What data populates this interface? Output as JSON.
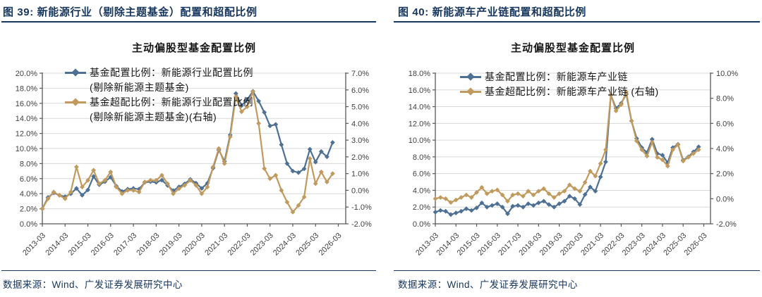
{
  "page": {
    "background": "#ffffff",
    "accent_navy": "#17365d",
    "grid_color": "#d9d9d9",
    "axis_color": "#595959"
  },
  "figures": [
    {
      "caption": "图 39: 新能源行业（剔除主题基金）配置和超配比例",
      "source": "数据来源：Wind、广发证券发展研究中心"
    },
    {
      "caption": "图 40: 新能源车产业链配置和超配比例",
      "source": "数据来源：Wind、广发证券发展研究中心"
    }
  ],
  "chart_data": [
    {
      "type": "line",
      "title": "主动偏股型基金配置比例",
      "grid": "horizontal",
      "legend_position": "top-left",
      "x_labels_quarterly": [
        "2013-03",
        "2013-06",
        "2013-09",
        "2013-12",
        "2014-03",
        "2014-06",
        "2014-09",
        "2014-12",
        "2015-03",
        "2015-06",
        "2015-09",
        "2015-12",
        "2016-03",
        "2016-06",
        "2016-09",
        "2016-12",
        "2017-03",
        "2017-06",
        "2017-09",
        "2017-12",
        "2018-03",
        "2018-06",
        "2018-09",
        "2018-12",
        "2019-03",
        "2019-06",
        "2019-09",
        "2019-12",
        "2020-03",
        "2020-06",
        "2020-09",
        "2020-12",
        "2021-03",
        "2021-06",
        "2021-09",
        "2021-12",
        "2022-03",
        "2022-06",
        "2022-09",
        "2022-12",
        "2023-03",
        "2023-06",
        "2023-09",
        "2023-12",
        "2024-03",
        "2024-06",
        "2024-09",
        "2024-12",
        "2025-03",
        "2025-06",
        "2025-09",
        "2025-12"
      ],
      "x_tick_labels": [
        "2013-03",
        "2014-03",
        "2015-03",
        "2016-03",
        "2017-03",
        "2018-03",
        "2019-03",
        "2020-03",
        "2021-03",
        "2022-03",
        "2023-03",
        "2024-03",
        "2025-03",
        "2026-03"
      ],
      "left_axis": {
        "lim": [
          0,
          20
        ],
        "ticks": [
          0,
          2,
          4,
          6,
          8,
          10,
          12,
          14,
          16,
          18,
          20
        ],
        "tick_labels": [
          "0.0%",
          "2.0%",
          "4.0%",
          "6.0%",
          "8.0%",
          "10.0%",
          "12.0%",
          "14.0%",
          "16.0%",
          "18.0%",
          "20.0%"
        ]
      },
      "right_axis": {
        "lim": [
          -2,
          7
        ],
        "ticks": [
          -2,
          -1,
          0,
          1,
          2,
          3,
          4,
          5,
          6,
          7
        ],
        "tick_labels": [
          "-2.0%",
          "-1.0%",
          "0.0%",
          "1.0%",
          "2.0%",
          "3.0%",
          "4.0%",
          "5.0%",
          "6.0%",
          "7.0%"
        ]
      },
      "series": [
        {
          "name": "基金配置比例：新能源行业配置比例(剔除新能源主题基金)",
          "legend_line1": "基金配置比例：新能源行业配置比例",
          "legend_line2": "(剔除新能源主题基金)",
          "axis": "left",
          "color": "#4d7094",
          "marker": "diamond",
          "values": [
            2.0,
            3.5,
            4.1,
            3.8,
            3.6,
            4.0,
            4.7,
            3.8,
            4.5,
            6.3,
            5.2,
            5.6,
            6.2,
            5.0,
            4.3,
            4.6,
            4.7,
            4.6,
            5.5,
            5.6,
            5.5,
            5.8,
            5.1,
            4.4,
            4.9,
            5.3,
            5.9,
            5.4,
            4.7,
            5.4,
            7.4,
            9.8,
            8.3,
            11.8,
            17.3,
            15.7,
            16.5,
            17.6,
            16.3,
            14.8,
            13.0,
            13.2,
            10.5,
            8.0,
            7.0,
            6.8,
            7.3,
            9.9,
            8.2,
            9.6,
            8.9,
            10.8
          ]
        },
        {
          "name": "基金超配比例：新能源行业配置比例(剔除新能源主题基金)(右轴)",
          "legend_line1": "基金超配比例：新能源行业配置比例",
          "legend_line2": "(剔除新能源主题基金)(右轴)",
          "axis": "right",
          "color": "#c19a5e",
          "marker": "diamond",
          "values": [
            -1.1,
            -0.5,
            -0.1,
            -0.3,
            -0.5,
            -0.1,
            1.4,
            0.2,
            0.6,
            1.2,
            0.4,
            0.6,
            1.1,
            0.2,
            -0.2,
            0.0,
            0.0,
            -0.1,
            0.5,
            0.6,
            0.6,
            0.9,
            0.4,
            -0.2,
            0.1,
            0.3,
            0.6,
            0.3,
            -0.2,
            0.2,
            1.4,
            2.5,
            1.6,
            3.2,
            5.6,
            4.7,
            5.0,
            5.9,
            4.0,
            1.3,
            0.7,
            0.9,
            0.0,
            -0.7,
            -1.3,
            -0.9,
            -0.4,
            1.9,
            0.4,
            1.1,
            0.5,
            1.0
          ]
        }
      ]
    },
    {
      "type": "line",
      "title": "主动偏股型基金配置比例",
      "grid": "horizontal",
      "legend_position": "top-left",
      "x_labels_quarterly": [
        "2013-03",
        "2013-06",
        "2013-09",
        "2013-12",
        "2014-03",
        "2014-06",
        "2014-09",
        "2014-12",
        "2015-03",
        "2015-06",
        "2015-09",
        "2015-12",
        "2016-03",
        "2016-06",
        "2016-09",
        "2016-12",
        "2017-03",
        "2017-06",
        "2017-09",
        "2017-12",
        "2018-03",
        "2018-06",
        "2018-09",
        "2018-12",
        "2019-03",
        "2019-06",
        "2019-09",
        "2019-12",
        "2020-03",
        "2020-06",
        "2020-09",
        "2020-12",
        "2021-03",
        "2021-06",
        "2021-09",
        "2021-12",
        "2022-03",
        "2022-06",
        "2022-09",
        "2022-12",
        "2023-03",
        "2023-06",
        "2023-09",
        "2023-12",
        "2024-03",
        "2024-06",
        "2024-09",
        "2024-12",
        "2025-03",
        "2025-06",
        "2025-09",
        "2025-12"
      ],
      "x_tick_labels": [
        "2013-03",
        "2014-03",
        "2015-03",
        "2016-03",
        "2017-03",
        "2018-03",
        "2019-03",
        "2020-03",
        "2021-03",
        "2022-03",
        "2023-03",
        "2024-03",
        "2025-03",
        "2026-03"
      ],
      "left_axis": {
        "lim": [
          0,
          18
        ],
        "ticks": [
          0,
          2,
          4,
          6,
          8,
          10,
          12,
          14,
          16,
          18
        ],
        "tick_labels": [
          "0.0%",
          "2.0%",
          "4.0%",
          "6.0%",
          "8.0%",
          "10.0%",
          "12.0%",
          "14.0%",
          "16.0%",
          "18.0%"
        ]
      },
      "right_axis": {
        "lim": [
          -2,
          10
        ],
        "ticks": [
          -2,
          0,
          2,
          4,
          6,
          8,
          10
        ],
        "tick_labels": [
          "-2.0%",
          "0.0%",
          "2.0%",
          "4.0%",
          "6.0%",
          "8.0%",
          "10.0%"
        ]
      },
      "series": [
        {
          "name": "基金配置比例：新能源车产业链",
          "legend_line1": "基金配置比例：新能源车产业链",
          "legend_line2": "",
          "axis": "left",
          "color": "#4d7094",
          "marker": "diamond",
          "values": [
            1.4,
            1.6,
            1.5,
            1.1,
            1.3,
            1.5,
            1.8,
            1.6,
            1.9,
            2.5,
            2.0,
            2.2,
            2.4,
            2.0,
            1.2,
            2.1,
            2.2,
            2.0,
            2.4,
            2.2,
            2.5,
            2.7,
            2.3,
            2.0,
            2.4,
            2.7,
            3.3,
            3.0,
            2.3,
            3.5,
            4.4,
            3.9,
            5.6,
            7.4,
            15.4,
            13.8,
            14.4,
            15.5,
            12.3,
            10.2,
            9.1,
            8.5,
            10.1,
            8.4,
            8.2,
            7.3,
            9.1,
            9.5,
            7.6,
            8.0,
            8.6,
            9.2
          ]
        },
        {
          "name": "基金超配比例：新能源车产业链 (右轴)",
          "legend_line1": "基金超配比例：新能源车产业链 (右轴)",
          "legend_line2": "",
          "axis": "right",
          "color": "#c19a5e",
          "marker": "diamond",
          "values": [
            0.0,
            0.1,
            0.0,
            -0.3,
            -0.1,
            0.1,
            0.3,
            0.1,
            0.5,
            0.9,
            0.4,
            0.6,
            0.7,
            0.3,
            -0.2,
            0.3,
            0.4,
            0.2,
            0.6,
            0.3,
            0.6,
            0.8,
            0.4,
            0.1,
            0.4,
            0.6,
            1.1,
            0.8,
            0.6,
            1.3,
            2.2,
            1.8,
            2.8,
            3.9,
            8.3,
            7.0,
            7.5,
            8.5,
            6.2,
            4.6,
            3.9,
            3.4,
            4.5,
            3.3,
            3.1,
            2.6,
            3.9,
            4.3,
            3.0,
            3.3,
            3.6,
            3.9
          ]
        }
      ]
    }
  ]
}
